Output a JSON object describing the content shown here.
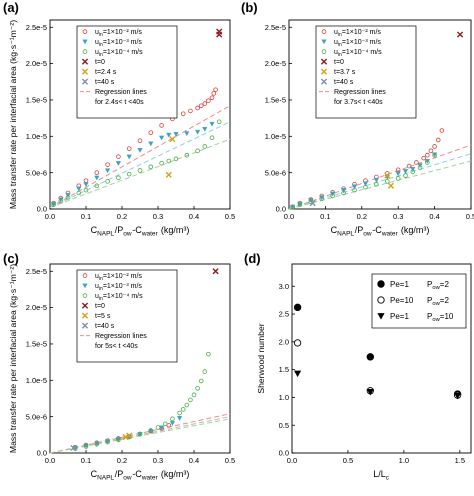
{
  "chart_data": [
    {
      "panel": "a",
      "type": "scatter",
      "xlabel": "C_NAPL/P_ow-C_water (kg/m³)",
      "ylabel": "Mass transfer rate per interfacial area (kg·s⁻¹m⁻²)",
      "xlim": [
        0,
        0.5
      ],
      "ylim": [
        0,
        2.6e-05
      ],
      "xticks": [
        "0.0",
        "0.1",
        "0.2",
        "0.3",
        "0.4",
        "0.5"
      ],
      "yticks": [
        "0.0",
        "5.0e-6",
        "1.0e-5",
        "1.5e-5",
        "2.0e-5",
        "2.5e-5"
      ],
      "legend": {
        "u1": "u",
        "u1sub": "in",
        "u1val": "=1×10⁻² m/s",
        "u2val": "=1×10⁻³ m/s",
        "u3val": "=1×10⁻⁴ m/s",
        "t0": "t=0",
        "t1": "t=2.4 s",
        "t2": "t=40 s",
        "reg1": "Regression lines",
        "reg2": "for 2.4s< t <40s"
      },
      "series": [
        {
          "name": "u_in=1×10⁻² m/s",
          "color": "#e8413b",
          "marker": "circle",
          "x": [
            0.01,
            0.03,
            0.05,
            0.08,
            0.1,
            0.13,
            0.16,
            0.19,
            0.22,
            0.25,
            0.28,
            0.31,
            0.34,
            0.37,
            0.39,
            0.41,
            0.42,
            0.43,
            0.44,
            0.45,
            0.455,
            0.46
          ],
          "y": [
            8e-07,
            1.5e-06,
            2.2e-06,
            3.2e-06,
            3.9e-06,
            5e-06,
            6.1e-06,
            7.2e-06,
            8.3e-06,
            9.4e-06,
            1.05e-05,
            1.15e-05,
            1.24e-05,
            1.31e-05,
            1.35e-05,
            1.39e-05,
            1.42e-05,
            1.45e-05,
            1.49e-05,
            1.53e-05,
            1.59e-05,
            1.64e-05
          ]
        },
        {
          "name": "u_in=1×10⁻³ m/s",
          "color": "#3aa2c9",
          "marker": "triangle",
          "x": [
            0.01,
            0.03,
            0.05,
            0.08,
            0.1,
            0.13,
            0.16,
            0.19,
            0.22,
            0.25,
            0.28,
            0.31,
            0.33,
            0.35,
            0.38,
            0.41,
            0.43,
            0.45
          ],
          "y": [
            7e-07,
            1.3e-06,
            1.9e-06,
            2.8e-06,
            3.4e-06,
            4.3e-06,
            5.3e-06,
            6.3e-06,
            7.2e-06,
            8.1e-06,
            9e-06,
            9.8e-06,
            1.02e-05,
            1.03e-05,
            1.04e-05,
            1.06e-05,
            1.1e-05,
            1.17e-05
          ]
        },
        {
          "name": "u_in=1×10⁻⁴ m/s",
          "color": "#4cb04a",
          "marker": "circle",
          "x": [
            0.01,
            0.03,
            0.05,
            0.08,
            0.1,
            0.13,
            0.16,
            0.19,
            0.22,
            0.25,
            0.28,
            0.31,
            0.33,
            0.35,
            0.38,
            0.41,
            0.43,
            0.45,
            0.47
          ],
          "y": [
            6e-07,
            1.1e-06,
            1.6e-06,
            2.2e-06,
            2.6e-06,
            3.2e-06,
            3.8e-06,
            4.3e-06,
            4.8e-06,
            5.3e-06,
            5.8e-06,
            6.3e-06,
            6.6e-06,
            6.9e-06,
            7.4e-06,
            8e-06,
            8.6e-06,
            9.8e-06,
            1.2e-05
          ]
        },
        {
          "name": "t=0",
          "color": "#8b1a1a",
          "marker": "x",
          "x": [
            0.47,
            0.47
          ],
          "y": [
            2.44e-05,
            2.4e-05
          ]
        },
        {
          "name": "t=2.4 s",
          "color": "#d4a017",
          "marker": "x",
          "x": [
            0.33,
            0.34
          ],
          "y": [
            4.7e-06,
            9.6e-06
          ]
        },
        {
          "name": "t=40 s",
          "color": "#7f8fb0",
          "marker": "x",
          "x": [],
          "y": []
        }
      ],
      "regression": [
        {
          "color": "#ef8a8a",
          "x": [
            0.0,
            0.5
          ],
          "y": [
            2e-07,
            1.42e-05
          ]
        },
        {
          "color": "#8ecfe0",
          "x": [
            0.0,
            0.5
          ],
          "y": [
            2e-07,
            1.2e-05
          ]
        },
        {
          "color": "#9ed69a",
          "x": [
            0.0,
            0.5
          ],
          "y": [
            2e-07,
            9.6e-06
          ]
        }
      ]
    },
    {
      "panel": "b",
      "type": "scatter",
      "xlabel": "C_NAPL/P_ow-C_water (kg/m³)",
      "ylabel": "",
      "xlim": [
        0,
        0.5
      ],
      "ylim": [
        0,
        2.6e-05
      ],
      "xticks": [
        "0.0",
        "0.1",
        "0.2",
        "0.3",
        "0.4",
        "0.5"
      ],
      "yticks": [
        "0.0",
        "5.0e-6",
        "1.0e-5",
        "1.5e-5",
        "2.0e-5",
        "2.5e-5"
      ],
      "legend": {
        "u1": "u",
        "u1sub": "in",
        "u1val": "=1×10⁻² m/s",
        "u2val": "=1×10⁻³ m/s",
        "u3val": "=1×10⁻⁴ m/s",
        "t0": "t=0",
        "t1": "t=3.7 s",
        "t2": "t=40 s",
        "reg1": "Regression lines",
        "reg2": "for 3.7s< t <40s"
      },
      "series": [
        {
          "name": "u_in=1×10⁻² m/s",
          "color": "#e8413b",
          "marker": "circle",
          "x": [
            0.01,
            0.03,
            0.06,
            0.09,
            0.12,
            0.15,
            0.18,
            0.21,
            0.24,
            0.27,
            0.3,
            0.33,
            0.35,
            0.37,
            0.38,
            0.39,
            0.4,
            0.41,
            0.42
          ],
          "y": [
            3e-07,
            8e-07,
            1.3e-06,
            1.8e-06,
            2.3e-06,
            2.8e-06,
            3.4e-06,
            3.9e-06,
            4.4e-06,
            4.9e-06,
            5.4e-06,
            5.9e-06,
            6.4e-06,
            7e-06,
            7.4e-06,
            8e-06,
            8.6e-06,
            9.5e-06,
            1.08e-05
          ]
        },
        {
          "name": "u_in=1×10⁻³ m/s",
          "color": "#3aa2c9",
          "marker": "triangle",
          "x": [
            0.01,
            0.03,
            0.06,
            0.09,
            0.12,
            0.15,
            0.18,
            0.21,
            0.24,
            0.27,
            0.3,
            0.32,
            0.34,
            0.36,
            0.38,
            0.4
          ],
          "y": [
            3e-07,
            7e-07,
            1.2e-06,
            1.6e-06,
            2.1e-06,
            2.6e-06,
            3.1e-06,
            3.5e-06,
            4e-06,
            4.4e-06,
            4.9e-06,
            5.2e-06,
            5.5e-06,
            6e-06,
            6.6e-06,
            7.5e-06
          ]
        },
        {
          "name": "u_in=1×10⁻⁴ m/s",
          "color": "#4cb04a",
          "marker": "circle",
          "x": [
            0.01,
            0.03,
            0.06,
            0.09,
            0.12,
            0.15,
            0.18,
            0.21,
            0.24,
            0.27,
            0.3,
            0.32,
            0.34,
            0.36,
            0.38,
            0.4
          ],
          "y": [
            2e-07,
            6e-07,
            1e-06,
            1.4e-06,
            1.8e-06,
            2.2e-06,
            2.6e-06,
            3e-06,
            3.4e-06,
            3.8e-06,
            4.2e-06,
            4.6e-06,
            5.1e-06,
            5.7e-06,
            6.4e-06,
            7.4e-06
          ]
        },
        {
          "name": "t=0",
          "color": "#8b1a1a",
          "marker": "x",
          "x": [
            0.47
          ],
          "y": [
            2.4e-05
          ]
        },
        {
          "name": "t=3.7 s",
          "color": "#d4a017",
          "marker": "x",
          "x": [
            0.28,
            0.27
          ],
          "y": [
            3.2e-06,
            4.6e-06
          ]
        },
        {
          "name": "t=40 s",
          "color": "#7f8fb0",
          "marker": "x",
          "x": [
            0.065
          ],
          "y": [
            8e-07
          ]
        }
      ],
      "regression": [
        {
          "color": "#ef8a8a",
          "x": [
            0.0,
            0.5
          ],
          "y": [
            0.0,
            8.8e-06
          ]
        },
        {
          "color": "#8ecfe0",
          "x": [
            0.0,
            0.5
          ],
          "y": [
            0.0,
            7.6e-06
          ]
        },
        {
          "color": "#9ed69a",
          "x": [
            0.0,
            0.5
          ],
          "y": [
            0.0,
            6.6e-06
          ]
        }
      ]
    },
    {
      "panel": "c",
      "type": "scatter",
      "xlabel": "C_NAPL/P_ow-C_water (kg/m³)",
      "ylabel": "Mass transfer rate per interfacial area (kg·s⁻¹m⁻²)",
      "xlim": [
        0,
        0.5
      ],
      "ylim": [
        0,
        2.6e-05
      ],
      "xticks": [
        "0.0",
        "0.1",
        "0.2",
        "0.3",
        "0.4",
        "0.5"
      ],
      "yticks": [
        "0.0",
        "5.0e-6",
        "1.0e-5",
        "1.5e-5",
        "2.0e-5",
        "2.5e-5"
      ],
      "legend": {
        "u1": "u",
        "u1sub": "in",
        "u1val": "=1×10⁻² m/s",
        "u2val": "=1×10⁻³ m/s",
        "u3val": "=1×10⁻⁴ m/s",
        "t0": "t=0",
        "t1": "t=5 s",
        "t2": "t=40 s",
        "reg1": "Regression lines",
        "reg2": "for 5s< t <40s"
      },
      "series": [
        {
          "name": "u_in=1×10⁻² m/s",
          "color": "#e8413b",
          "marker": "circle",
          "x": [
            0.07,
            0.1,
            0.13,
            0.16,
            0.19,
            0.22,
            0.25,
            0.28,
            0.31,
            0.33
          ],
          "y": [
            8e-07,
            1.1e-06,
            1.4e-06,
            1.7e-06,
            2e-06,
            2.3e-06,
            2.6e-06,
            3e-06,
            3.4e-06,
            3.8e-06
          ]
        },
        {
          "name": "u_in=1×10⁻³ m/s",
          "color": "#3aa2c9",
          "marker": "triangle",
          "x": [
            0.07,
            0.1,
            0.13,
            0.16,
            0.19,
            0.22,
            0.25,
            0.28,
            0.31,
            0.34,
            0.36
          ],
          "y": [
            7e-07,
            1e-06,
            1.3e-06,
            1.6e-06,
            1.9e-06,
            2.2e-06,
            2.6e-06,
            3e-06,
            3.5e-06,
            4.1e-06,
            4.8e-06
          ]
        },
        {
          "name": "u_in=1×10⁻⁴ m/s",
          "color": "#4cb04a",
          "marker": "circle",
          "x": [
            0.07,
            0.1,
            0.13,
            0.16,
            0.19,
            0.22,
            0.25,
            0.28,
            0.3,
            0.32,
            0.34,
            0.36,
            0.37,
            0.38,
            0.39,
            0.4,
            0.41,
            0.42,
            0.43,
            0.44
          ],
          "y": [
            6e-07,
            9e-07,
            1.2e-06,
            1.5e-06,
            1.8e-06,
            2.2e-06,
            2.6e-06,
            3.1e-06,
            3.5e-06,
            4e-06,
            4.7e-06,
            5.5e-06,
            6e-06,
            6.6e-06,
            7.3e-06,
            8e-06,
            8.9e-06,
            9.9e-06,
            1.12e-05,
            1.36e-05
          ]
        },
        {
          "name": "t=0",
          "color": "#8b1a1a",
          "marker": "x",
          "x": [
            0.46
          ],
          "y": [
            2.5e-05
          ]
        },
        {
          "name": "t=5 s",
          "color": "#d4a017",
          "marker": "x",
          "x": [
            0.21,
            0.22
          ],
          "y": [
            2.2e-06,
            2.4e-06
          ]
        },
        {
          "name": "t=40 s",
          "color": "#7f8fb0",
          "marker": "x",
          "x": [
            0.065
          ],
          "y": [
            7e-07
          ]
        }
      ],
      "regression": [
        {
          "color": "#ef8a8a",
          "x": [
            0.0,
            0.5
          ],
          "y": [
            0.0,
            5.4e-06
          ]
        },
        {
          "color": "#bbbbbb",
          "x": [
            0.0,
            0.5
          ],
          "y": [
            0.0,
            5e-06
          ]
        },
        {
          "color": "#9ed69a",
          "x": [
            0.0,
            0.5
          ],
          "y": [
            0.0,
            4.7e-06
          ]
        }
      ]
    },
    {
      "panel": "d",
      "type": "scatter",
      "xlabel": "L/L_c",
      "ylabel": "Sherwood number",
      "xlim": [
        0,
        1.6
      ],
      "ylim": [
        0,
        3.4
      ],
      "xticks": [
        "0.0",
        "0.5",
        "1.0",
        "1.5"
      ],
      "yticks": [
        "0.0",
        "0.5",
        "1.0",
        "1.5",
        "2.0",
        "2.5",
        "3.0"
      ],
      "legend": {
        "l1a": "Pe=1",
        "l1b": "P",
        "l1bsub": "ow",
        "l1c": "=2",
        "l2a": "Pe=10",
        "l2b": "P",
        "l2bsub": "ow",
        "l2c": "=2",
        "l3a": "Pe=1",
        "l3b": "P",
        "l3bsub": "ow",
        "l3c": "=10"
      },
      "series": [
        {
          "name": "Pe=1 Pow=2",
          "marker": "filled-circle",
          "x": [
            0.05,
            0.7,
            1.48
          ],
          "y": [
            2.62,
            1.73,
            1.06
          ]
        },
        {
          "name": "Pe=10 Pow=2",
          "marker": "open-circle",
          "x": [
            0.05,
            0.7,
            1.48
          ],
          "y": [
            1.98,
            1.12,
            1.04
          ]
        },
        {
          "name": "Pe=1 Pow=10",
          "marker": "filled-triangle",
          "x": [
            0.05,
            0.7,
            1.48
          ],
          "y": [
            1.43,
            1.1,
            1.03
          ]
        }
      ]
    }
  ],
  "panel_labels": [
    "(a)",
    "(b)",
    "(c)",
    "(d)"
  ]
}
